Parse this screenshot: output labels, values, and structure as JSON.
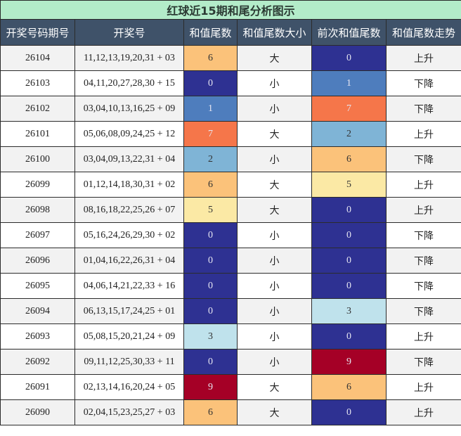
{
  "title": "红球近15期和尾分析图示",
  "headers": [
    "开奖号码期号",
    "开奖号",
    "和值尾数",
    "和值尾数大小",
    "前次和值尾数",
    "和值尾数走势"
  ],
  "colors": {
    "0": "#2e3192",
    "1": "#4e7dbd",
    "2": "#7fb4d6",
    "3": "#bfe2ec",
    "5": "#fbe9a5",
    "6": "#fbc27a",
    "7": "#f5764a",
    "9": "#a50026"
  },
  "rows": [
    {
      "issue": "26104",
      "draw": "11,12,13,19,20,31 + 03",
      "tail": "6",
      "size": "大",
      "prev": "0",
      "trend": "上升"
    },
    {
      "issue": "26103",
      "draw": "04,11,20,27,28,30 + 15",
      "tail": "0",
      "size": "小",
      "prev": "1",
      "trend": "下降"
    },
    {
      "issue": "26102",
      "draw": "03,04,10,13,16,25 + 09",
      "tail": "1",
      "size": "小",
      "prev": "7",
      "trend": "下降"
    },
    {
      "issue": "26101",
      "draw": "05,06,08,09,24,25 + 12",
      "tail": "7",
      "size": "大",
      "prev": "2",
      "trend": "上升"
    },
    {
      "issue": "26100",
      "draw": "03,04,09,13,22,31 + 04",
      "tail": "2",
      "size": "小",
      "prev": "6",
      "trend": "下降"
    },
    {
      "issue": "26099",
      "draw": "01,12,14,18,30,31 + 02",
      "tail": "6",
      "size": "大",
      "prev": "5",
      "trend": "上升"
    },
    {
      "issue": "26098",
      "draw": "08,16,18,22,25,26 + 07",
      "tail": "5",
      "size": "大",
      "prev": "0",
      "trend": "上升"
    },
    {
      "issue": "26097",
      "draw": "05,16,24,26,29,30 + 02",
      "tail": "0",
      "size": "小",
      "prev": "0",
      "trend": "下降"
    },
    {
      "issue": "26096",
      "draw": "01,04,16,22,26,31 + 04",
      "tail": "0",
      "size": "小",
      "prev": "0",
      "trend": "下降"
    },
    {
      "issue": "26095",
      "draw": "04,06,14,21,22,33 + 16",
      "tail": "0",
      "size": "小",
      "prev": "0",
      "trend": "下降"
    },
    {
      "issue": "26094",
      "draw": "06,13,15,17,24,25 + 01",
      "tail": "0",
      "size": "小",
      "prev": "3",
      "trend": "下降"
    },
    {
      "issue": "26093",
      "draw": "05,08,15,20,21,24 + 09",
      "tail": "3",
      "size": "小",
      "prev": "0",
      "trend": "上升"
    },
    {
      "issue": "26092",
      "draw": "09,11,12,25,30,33 + 11",
      "tail": "0",
      "size": "小",
      "prev": "9",
      "trend": "下降"
    },
    {
      "issue": "26091",
      "draw": "02,13,14,16,20,24 + 05",
      "tail": "9",
      "size": "大",
      "prev": "6",
      "trend": "上升"
    },
    {
      "issue": "26090",
      "draw": "02,04,15,23,25,27 + 03",
      "tail": "6",
      "size": "大",
      "prev": "0",
      "trend": "上升"
    }
  ]
}
